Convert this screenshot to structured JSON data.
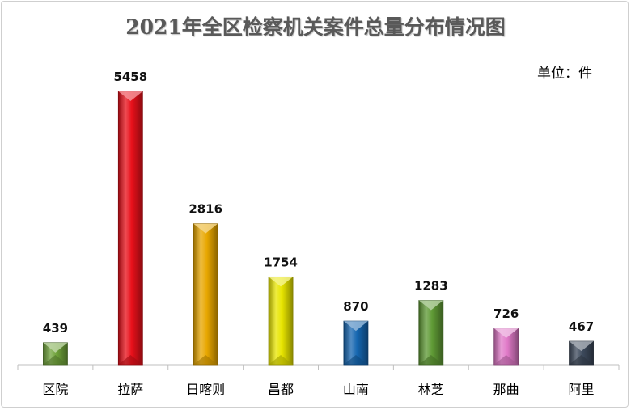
{
  "chart_data": {
    "type": "bar",
    "title": "2021年全区检察机关案件总量分布情况图",
    "unit_label": "单位：件",
    "categories": [
      "区院",
      "拉萨",
      "日喀则",
      "昌都",
      "山南",
      "林芝",
      "那曲",
      "阿里"
    ],
    "values": [
      439,
      5458,
      2816,
      1754,
      870,
      1283,
      726,
      467
    ],
    "colors": [
      "#6fa33a",
      "#e8101a",
      "#e8a700",
      "#e8e500",
      "#1566b0",
      "#5f9a35",
      "#e07ac8",
      "#3d4a5c"
    ],
    "ylim": [
      0,
      5800
    ],
    "grid": false,
    "legend": "none"
  }
}
